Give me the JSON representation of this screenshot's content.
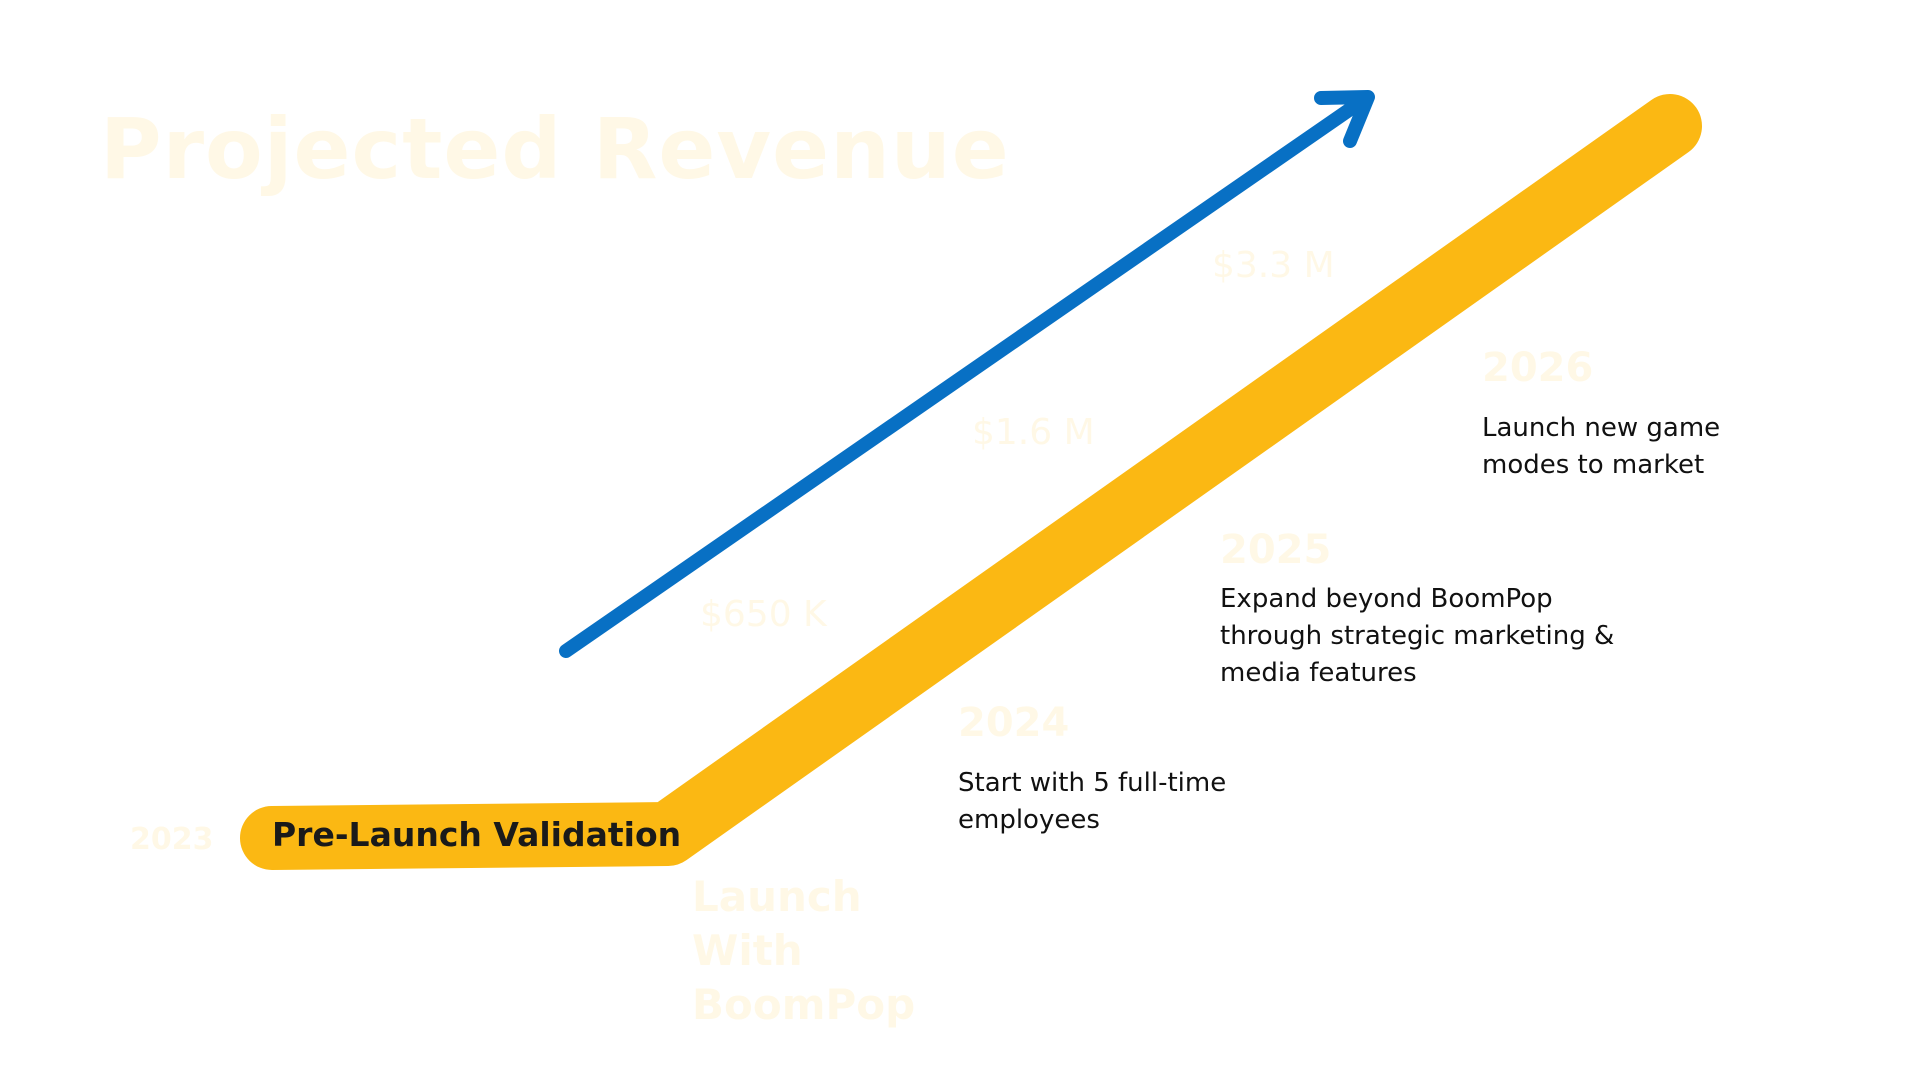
{
  "title": "Projected Revenue",
  "side_label": "2023",
  "pill_label": "Pre-Launch Validation",
  "launch_label_line1": "Launch With",
  "launch_label_line2": "BoomPop",
  "colors": {
    "arrow": "#0870C4",
    "path": "#FBB813",
    "faint_text": "#FFF8E6",
    "text": "#111111"
  },
  "revenue": [
    {
      "value": "$650 K"
    },
    {
      "value": "$1.6 M"
    },
    {
      "value": "$3.3 M"
    }
  ],
  "milestones": [
    {
      "year": "2024",
      "lines": [
        "Start with 5 full-time",
        "employees"
      ]
    },
    {
      "year": "2025",
      "lines": [
        "Expand beyond BoomPop",
        "through strategic marketing  &",
        "media features"
      ]
    },
    {
      "year": "2026",
      "lines": [
        "Launch new game",
        "modes to market"
      ]
    }
  ]
}
